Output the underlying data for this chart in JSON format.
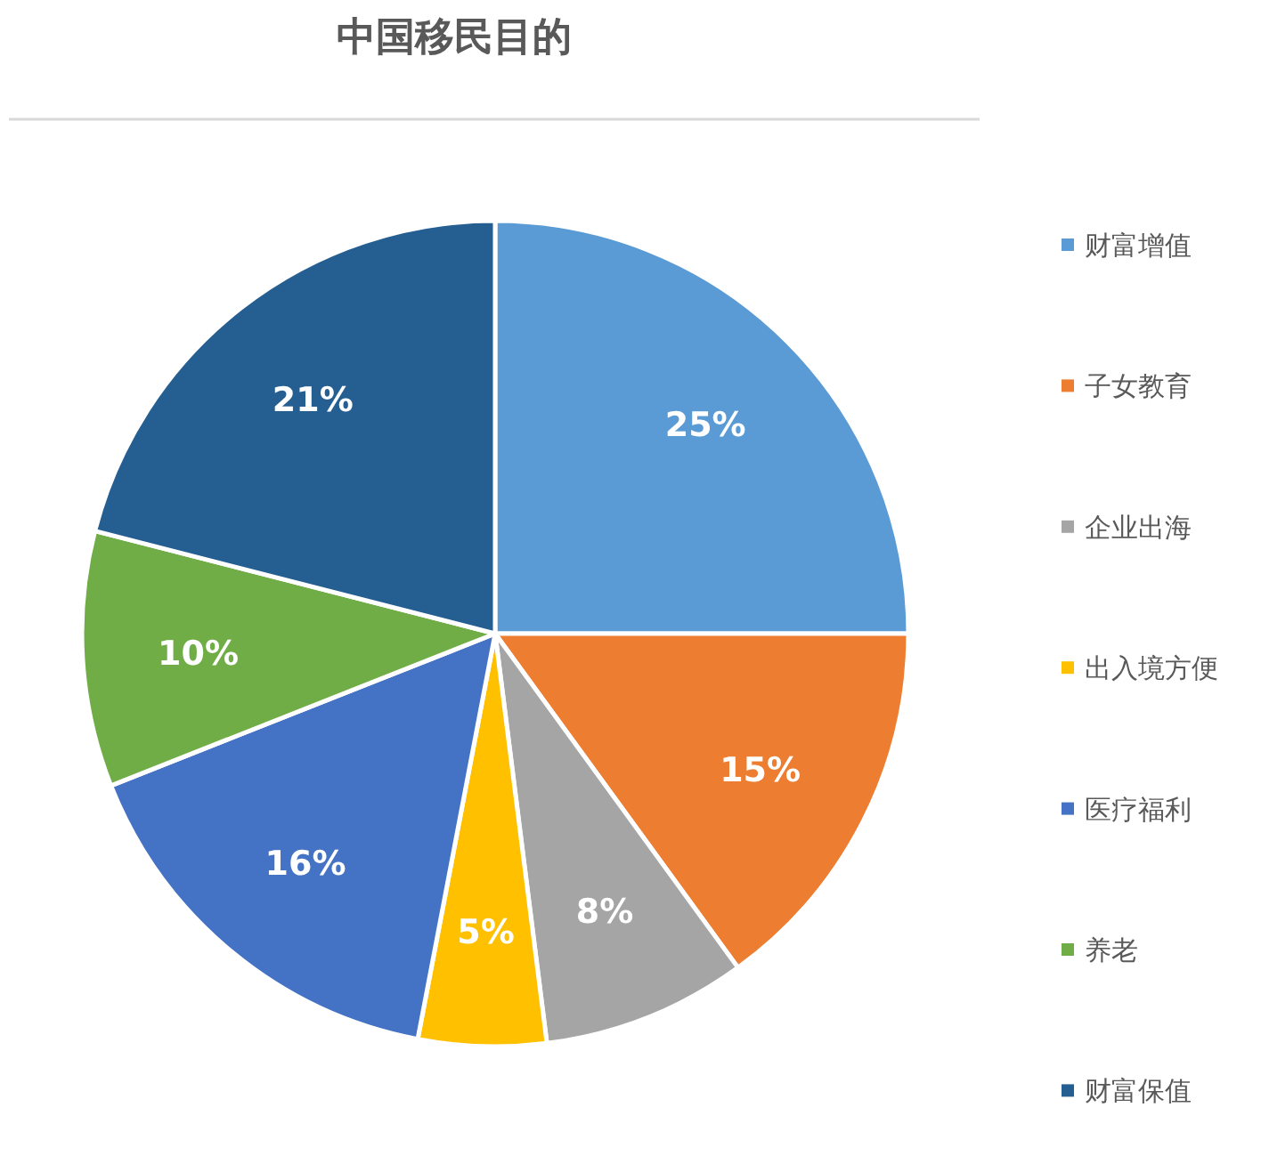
{
  "chart_data": {
    "type": "pie",
    "title": "中国移民目的",
    "categories": [
      "财富增值",
      "子女教育",
      "企业出海",
      "出入境方便",
      "医疗福利",
      "养老",
      "财富保值"
    ],
    "values": [
      25,
      15,
      8,
      5,
      16,
      10,
      21
    ],
    "colors": [
      "#5b9bd5",
      "#ed7d31",
      "#a5a5a5",
      "#ffc000",
      "#4472c4",
      "#70ad47",
      "#255e91"
    ],
    "value_labels": [
      "25%",
      "15%",
      "8%",
      "5%",
      "16%",
      "10%",
      "21%"
    ],
    "legend": "right"
  }
}
